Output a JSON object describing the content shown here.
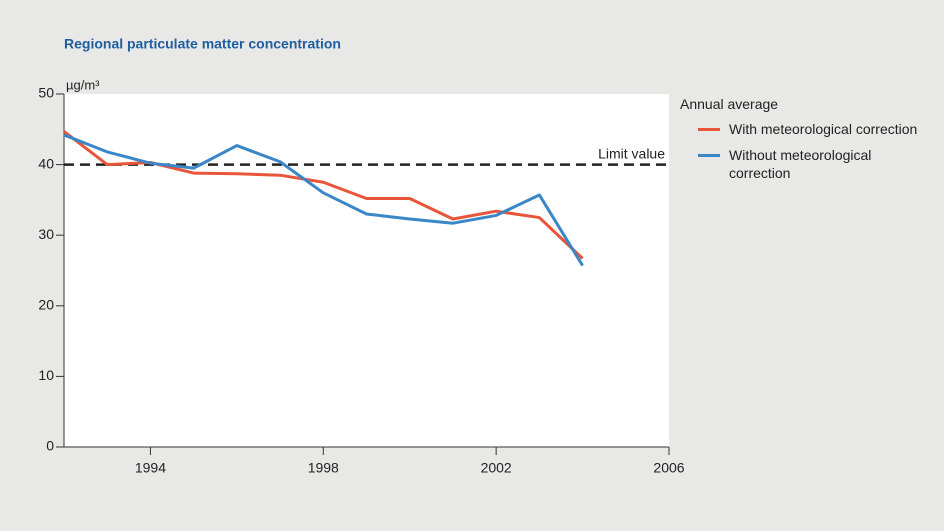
{
  "chart_data": {
    "type": "line",
    "title": "Regional particulate matter concentration",
    "y_label": "µg/m³",
    "legend_title": "Annual average",
    "x": [
      1992,
      1993,
      1994,
      1995,
      1996,
      1997,
      1998,
      1999,
      2000,
      2001,
      2002,
      2003,
      2004
    ],
    "series": [
      {
        "name": "With meteorological correction",
        "color": "#e8553a",
        "values": [
          44.7,
          40.0,
          40.3,
          38.8,
          38.7,
          38.5,
          37.5,
          35.2,
          35.2,
          32.3,
          33.4,
          32.5,
          26.7
        ]
      },
      {
        "name": "Without meteorological correction",
        "color": "#3a87c8",
        "values": [
          44.2,
          41.8,
          40.2,
          39.5,
          42.7,
          40.4,
          36.0,
          33.0,
          32.3,
          31.7,
          32.8,
          35.7,
          25.7
        ]
      }
    ],
    "reference_line": {
      "value": 40,
      "label": "Limit value",
      "color": "#222222"
    },
    "xlim": [
      1992,
      2006
    ],
    "xticks": [
      1994,
      1998,
      2002,
      2006
    ],
    "ylim": [
      0,
      50
    ],
    "yticks": [
      0,
      10,
      20,
      30,
      40,
      50
    ]
  }
}
